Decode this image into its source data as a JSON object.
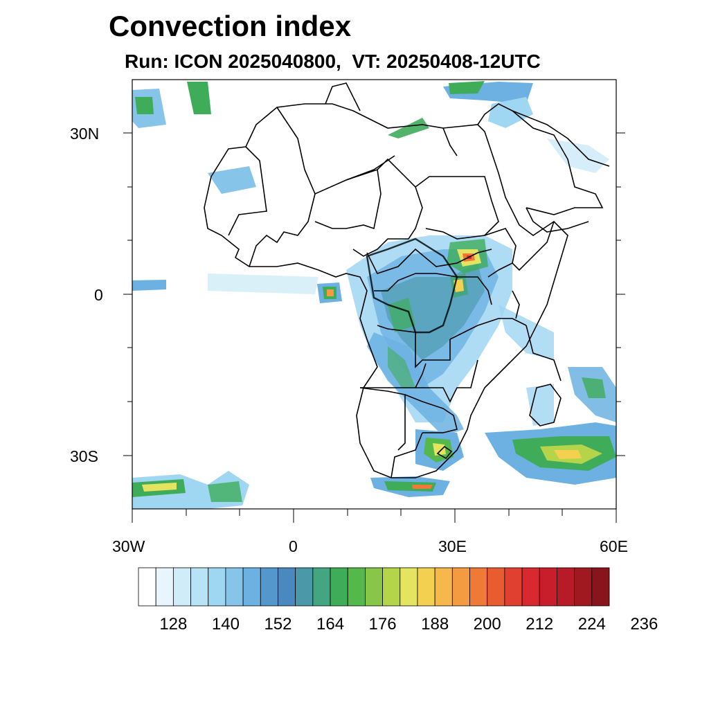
{
  "title": "Convection index",
  "subtitle": "Run: ICON 2025040800,  VT: 20250408-12UTC",
  "map": {
    "extent": {
      "lon": [
        -30,
        60
      ],
      "lat": [
        -40,
        40
      ]
    },
    "lat_labels": [
      "30N",
      "0",
      "30S"
    ],
    "lon_labels": [
      "30W",
      "0",
      "30E",
      "60E"
    ]
  },
  "colorbar": {
    "labels": [
      "128",
      "140",
      "152",
      "164",
      "176",
      "188",
      "200",
      "212",
      "224",
      "236"
    ],
    "colors": [
      "#ffffff",
      "#e8f5fc",
      "#d0ecf8",
      "#b8e2f5",
      "#9fd6f2",
      "#86c4ea",
      "#6cb1e2",
      "#5497cc",
      "#4a88c0",
      "#4a98a8",
      "#44a680",
      "#3fac5a",
      "#55b84a",
      "#88c648",
      "#b4d44a",
      "#e4e460",
      "#f4d050",
      "#f6b848",
      "#f49a40",
      "#ee7a36",
      "#e85c30",
      "#e04030",
      "#d82830",
      "#c81e2c",
      "#b81a28",
      "#a01820",
      "#88141c"
    ]
  }
}
